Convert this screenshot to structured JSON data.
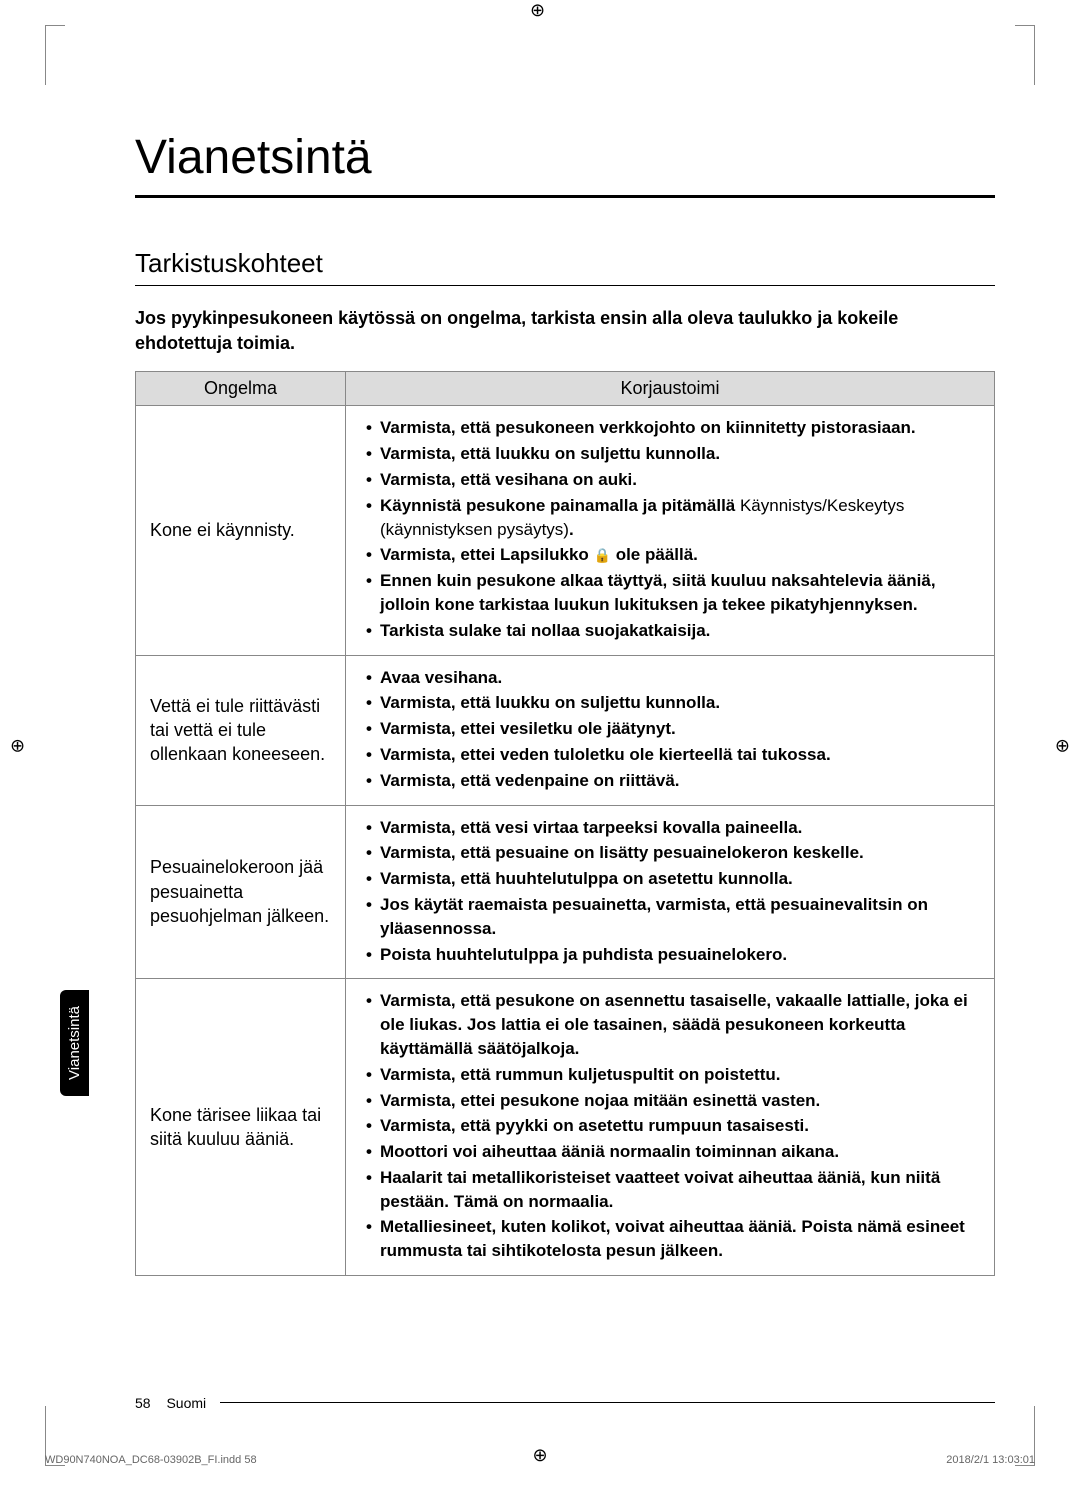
{
  "page": {
    "main_title": "Vianetsintä",
    "section_title": "Tarkistuskohteet",
    "intro_text": "Jos pyykinpesukoneen käytössä on ongelma, tarkista ensin alla oleva taulukko ja kokeile ehdotettuja toimia.",
    "sidebar_label": "Vianetsintä",
    "page_number": "58",
    "language": "Suomi",
    "print_file": "WD90N740NOA_DC68-03902B_FI.indd   58",
    "print_date": "2018/2/1   13:03:01"
  },
  "table": {
    "header_problem": "Ongelma",
    "header_fix": "Korjaustoimi",
    "rows": [
      {
        "problem": "Kone ei käynnisty.",
        "fixes": [
          {
            "bold": "Varmista, että pesukoneen verkkojohto on kiinnitetty pistorasiaan."
          },
          {
            "bold": "Varmista, että luukku on suljettu kunnolla."
          },
          {
            "bold": "Varmista, että vesihana on auki."
          },
          {
            "bold_prefix": "Käynnistä pesukone painamalla ja pitämällä ",
            "normal": "Käynnistys/Keskeytys (käynnistyksen pysäytys)",
            "bold_suffix": "."
          },
          {
            "bold_prefix": "Varmista, ettei Lapsilukko ",
            "icon": "lock",
            "bold_suffix": " ole päällä."
          },
          {
            "bold": "Ennen kuin pesukone alkaa täyttyä, siitä kuuluu naksahtelevia ääniä, jolloin kone tarkistaa luukun lukituksen ja tekee pikatyhjennyksen."
          },
          {
            "bold": "Tarkista sulake tai nollaa suojakatkaisija."
          }
        ]
      },
      {
        "problem": "Vettä ei tule riittävästi tai vettä ei tule ollenkaan koneeseen.",
        "fixes": [
          {
            "bold": "Avaa vesihana."
          },
          {
            "bold": "Varmista, että luukku on suljettu kunnolla."
          },
          {
            "bold": "Varmista, ettei vesiletku ole jäätynyt."
          },
          {
            "bold": "Varmista, ettei veden tuloletku ole kierteellä tai tukossa."
          },
          {
            "bold": "Varmista, että vedenpaine on riittävä."
          }
        ]
      },
      {
        "problem": "Pesuainelokeroon jää pesuainetta pesuohjelman jälkeen.",
        "fixes": [
          {
            "bold": "Varmista, että vesi virtaa tarpeeksi kovalla paineella."
          },
          {
            "bold": "Varmista, että pesuaine on lisätty pesuainelokeron keskelle."
          },
          {
            "bold": "Varmista, että huuhtelutulppa on asetettu kunnolla."
          },
          {
            "bold": "Jos käytät raemaista pesuainetta, varmista, että pesuainevalitsin on yläasennossa."
          },
          {
            "bold": "Poista huuhtelutulppa ja puhdista pesuainelokero."
          }
        ]
      },
      {
        "problem": "Kone tärisee liikaa tai siitä kuuluu ääniä.",
        "fixes": [
          {
            "bold": "Varmista, että pesukone on asennettu tasaiselle, vakaalle lattialle, joka ei ole liukas. Jos lattia ei ole tasainen, säädä pesukoneen korkeutta käyttämällä säätöjalkoja."
          },
          {
            "bold": "Varmista, että rummun kuljetuspultit on poistettu."
          },
          {
            "bold": "Varmista, ettei pesukone nojaa mitään esinettä vasten."
          },
          {
            "bold": "Varmista, että pyykki on asetettu rumpuun tasaisesti."
          },
          {
            "bold": "Moottori voi aiheuttaa ääniä normaalin toiminnan aikana."
          },
          {
            "bold": "Haalarit tai metallikoristeiset vaatteet voivat aiheuttaa ääniä, kun niitä pestään. Tämä on normaalia."
          },
          {
            "bold": "Metalliesineet, kuten kolikot, voivat aiheuttaa ääniä. Poista nämä esineet rummusta tai sihtikotelosta pesun jälkeen."
          }
        ]
      }
    ]
  },
  "colors": {
    "table_header_bg": "#dcdcdc",
    "table_border": "#888888",
    "text": "#000000",
    "sidebar_bg": "#000000",
    "sidebar_text": "#ffffff"
  }
}
